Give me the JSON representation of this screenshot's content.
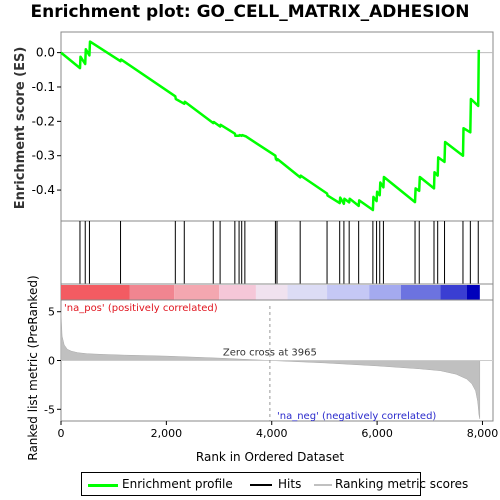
{
  "chart_data": {
    "type": "line",
    "title": "Enrichment plot: GO_CELL_MATRIX_ADHESION",
    "xlabel": "Rank in Ordered Dataset",
    "x_ticks": [
      "0",
      "2,000",
      "4,000",
      "6,000",
      "8,000"
    ],
    "x_tick_values": [
      0,
      2000,
      4000,
      6000,
      8000
    ],
    "xlim": [
      0,
      8200
    ],
    "top_panel": {
      "ylabel": "Enrichment score (ES)",
      "ylim": [
        -0.49,
        0.06
      ],
      "y_ticks": [
        "0.0",
        "-0.1",
        "-0.2",
        "-0.3",
        "-0.4"
      ],
      "y_tick_values": [
        0.0,
        -0.1,
        -0.2,
        -0.3,
        -0.4
      ],
      "series": [
        {
          "name": "Enrichment profile",
          "color": "#00ff00",
          "x": [
            0,
            360,
            370,
            460,
            470,
            540,
            550,
            1130,
            1140,
            2170,
            2180,
            2340,
            2350,
            2890,
            2900,
            3020,
            3030,
            3300,
            3310,
            3380,
            3390,
            3430,
            3440,
            3490,
            3500,
            4070,
            4080,
            4100,
            4110,
            4540,
            4550,
            5050,
            5060,
            5290,
            5300,
            5370,
            5380,
            5470,
            5480,
            5650,
            5660,
            5920,
            5930,
            5990,
            6000,
            6050,
            6060,
            6120,
            6130,
            6720,
            6730,
            6800,
            6810,
            7080,
            7090,
            7150,
            7160,
            7280,
            7290,
            7630,
            7640,
            7770,
            7780,
            7920,
            7930
          ],
          "y": [
            0.0,
            -0.045,
            -0.012,
            -0.033,
            0.01,
            -0.008,
            0.032,
            -0.025,
            -0.02,
            -0.127,
            -0.135,
            -0.149,
            -0.143,
            -0.205,
            -0.202,
            -0.215,
            -0.21,
            -0.236,
            -0.242,
            -0.242,
            -0.24,
            -0.242,
            -0.24,
            -0.243,
            -0.243,
            -0.3,
            -0.31,
            -0.313,
            -0.31,
            -0.363,
            -0.358,
            -0.41,
            -0.416,
            -0.438,
            -0.422,
            -0.44,
            -0.425,
            -0.436,
            -0.425,
            -0.446,
            -0.43,
            -0.458,
            -0.42,
            -0.432,
            -0.405,
            -0.415,
            -0.378,
            -0.392,
            -0.362,
            -0.435,
            -0.395,
            -0.402,
            -0.362,
            -0.395,
            -0.348,
            -0.358,
            -0.305,
            -0.318,
            -0.26,
            -0.3,
            -0.22,
            -0.232,
            -0.135,
            -0.155,
            0.008
          ]
        }
      ]
    },
    "hits": [
      360,
      460,
      540,
      1130,
      2170,
      2340,
      2890,
      3020,
      3300,
      3380,
      3430,
      3490,
      4070,
      4100,
      4540,
      5050,
      5290,
      5370,
      5470,
      5650,
      5920,
      5990,
      6050,
      6120,
      6720,
      6800,
      7080,
      7150,
      7280,
      7630,
      7770,
      7920
    ],
    "rank_bar": {
      "label_pos": "'na_pos' (positively correlated)",
      "label_neg": "'na_neg' (negatively correlated)",
      "segments": [
        {
          "from": 0,
          "to": 1300,
          "color": "#f35b62"
        },
        {
          "from": 1300,
          "to": 2150,
          "color": "#f18590"
        },
        {
          "from": 2150,
          "to": 3000,
          "color": "#f4a7b0"
        },
        {
          "from": 3000,
          "to": 3700,
          "color": "#f5c7d8"
        },
        {
          "from": 3700,
          "to": 4300,
          "color": "#f0e2ef"
        },
        {
          "from": 4300,
          "to": 5050,
          "color": "#dcdcf5"
        },
        {
          "from": 5050,
          "to": 5850,
          "color": "#c5c8f5"
        },
        {
          "from": 5850,
          "to": 6450,
          "color": "#a4aaef"
        },
        {
          "from": 6450,
          "to": 7200,
          "color": "#6c73e0"
        },
        {
          "from": 7200,
          "to": 7700,
          "color": "#3a3ed2"
        },
        {
          "from": 7700,
          "to": 7950,
          "color": "#0000bb"
        }
      ]
    },
    "bottom_panel": {
      "ylabel": "Ranked list metric (PreRanked)",
      "ylim": [
        -6.2,
        6.2
      ],
      "y_ticks": [
        "5",
        "0",
        "-5"
      ],
      "y_tick_values": [
        5,
        0,
        -5
      ],
      "zero_cross_label": "Zero cross at 3965",
      "zero_cross": 3965,
      "fill_color": "#c0c0c0",
      "x": [
        0,
        20,
        60,
        120,
        200,
        320,
        500,
        800,
        1200,
        2000,
        3000,
        3965,
        5000,
        6000,
        6800,
        7200,
        7500,
        7700,
        7800,
        7870,
        7910,
        7935,
        7950
      ],
      "y": [
        5.0,
        2.5,
        1.6,
        1.15,
        0.95,
        0.8,
        0.7,
        0.62,
        0.55,
        0.45,
        0.25,
        0.0,
        -0.25,
        -0.55,
        -0.85,
        -1.05,
        -1.4,
        -1.9,
        -2.4,
        -3.1,
        -4.2,
        -5.6,
        -6.0
      ]
    },
    "legend": [
      {
        "label": "Enrichment profile",
        "color": "#00ff00"
      },
      {
        "label": "Hits",
        "color": "#000000"
      },
      {
        "label": "Ranking metric scores",
        "color": "#c0c0c0"
      }
    ]
  }
}
